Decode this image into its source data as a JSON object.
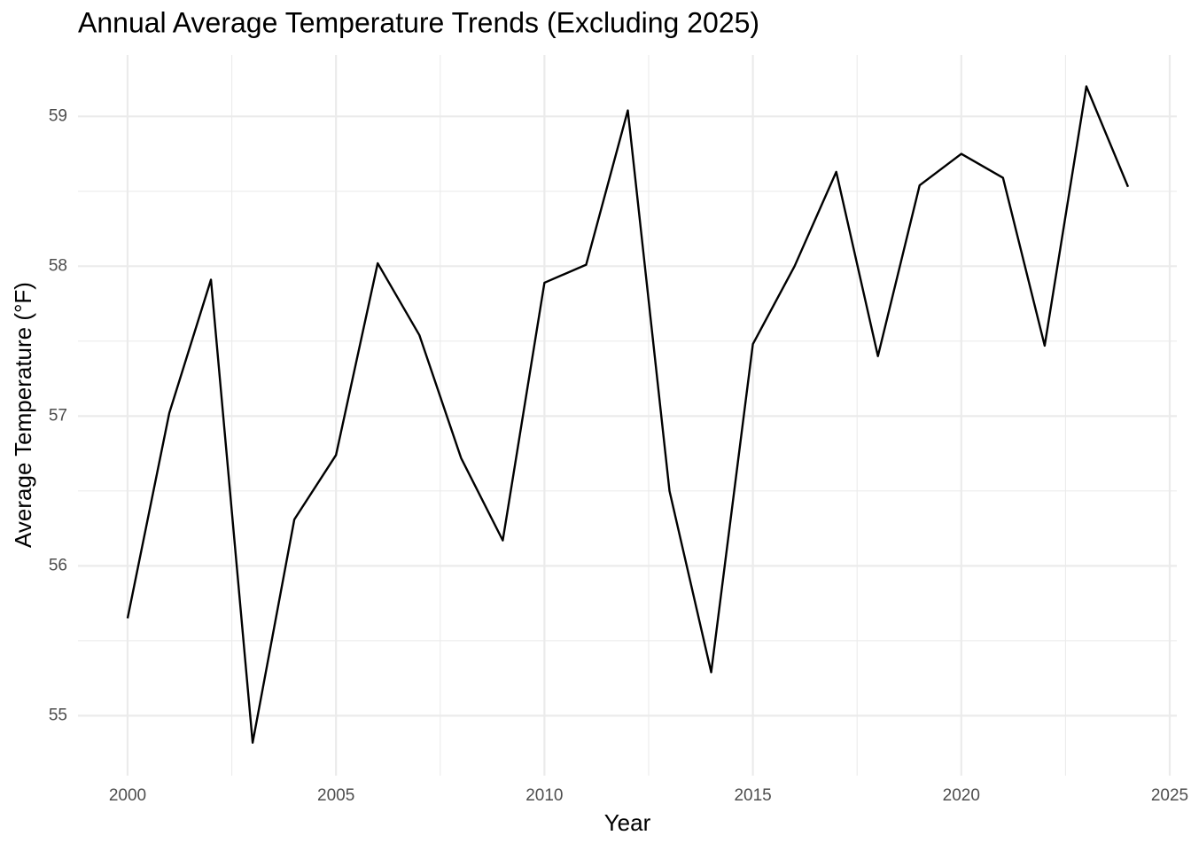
{
  "chart_data": {
    "type": "line",
    "title": "Annual Average Temperature Trends (Excluding 2025)",
    "x_label": "Year",
    "y_label": "Average Temperature (°F)",
    "x": [
      2000,
      2001,
      2002,
      2003,
      2004,
      2005,
      2006,
      2007,
      2008,
      2009,
      2010,
      2011,
      2012,
      2013,
      2014,
      2015,
      2016,
      2017,
      2018,
      2019,
      2020,
      2021,
      2022,
      2023,
      2024
    ],
    "series": [
      {
        "name": "Average Temperature",
        "color": "#000000",
        "values": [
          55.65,
          57.02,
          57.91,
          54.82,
          56.31,
          56.74,
          58.02,
          57.54,
          56.72,
          56.17,
          57.89,
          58.01,
          59.04,
          56.5,
          55.29,
          57.48,
          58.0,
          58.63,
          57.4,
          58.54,
          58.75,
          58.59,
          57.47,
          59.2,
          58.53
        ]
      }
    ],
    "xlim": [
      1998.81,
      2025.17
    ],
    "ylim": [
      54.6,
      59.41
    ],
    "xticks": [
      2000,
      2005,
      2010,
      2015,
      2020,
      2025
    ],
    "yticks": [
      55,
      56,
      57,
      58,
      59
    ],
    "grid": true,
    "minor_grid": true
  }
}
